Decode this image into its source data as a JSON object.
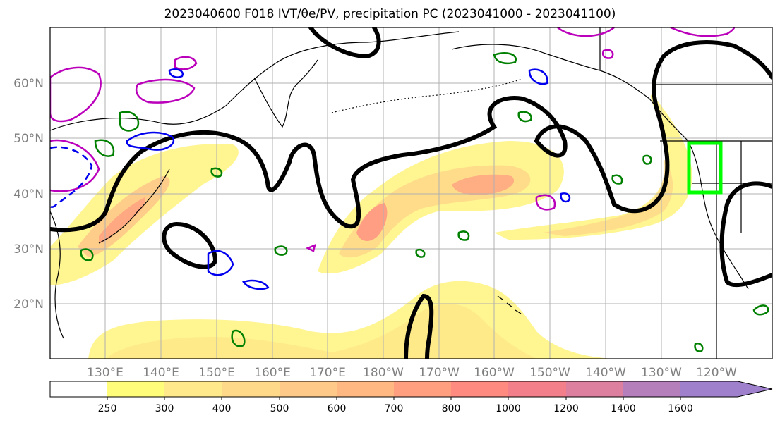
{
  "title": "2023040600 F018 IVT/θe/PV, precipitation PC (2023041000 - 2023041100)",
  "map": {
    "lat_labels": [
      "60°N",
      "50°N",
      "40°N",
      "30°N",
      "20°N"
    ],
    "lon_labels": [
      "130°E",
      "140°E",
      "150°E",
      "160°E",
      "170°E",
      "180°W",
      "170°W",
      "160°W",
      "150°W",
      "140°W",
      "130°W",
      "120°W"
    ],
    "extent": {
      "lon_min": 120,
      "lon_max": 250,
      "lat_min": 10,
      "lat_max": 70
    },
    "projection": "plate carree",
    "grid": true,
    "highlight_box": {
      "lon": [
        235,
        241
      ],
      "lat": [
        40,
        49
      ],
      "color": "#00ff00"
    }
  },
  "colorbar": {
    "ticks": [
      "250",
      "300",
      "400",
      "500",
      "600",
      "700",
      "800",
      "1000",
      "1200",
      "1400",
      "1600"
    ],
    "colors": [
      "#fffd7a",
      "#ffe98a",
      "#ffd98a",
      "#ffc989",
      "#ffb882",
      "#ff9f80",
      "#ff8a80",
      "#f27f8a",
      "#dd7f9e",
      "#b57fbb",
      "#9f80cc"
    ],
    "extend": "max"
  },
  "legend_colors": {
    "ivt_contour": "#000000",
    "pv_contour": "#bb00bb",
    "theta_e_contour": "#0000ee",
    "precip_contour": "#008000"
  }
}
